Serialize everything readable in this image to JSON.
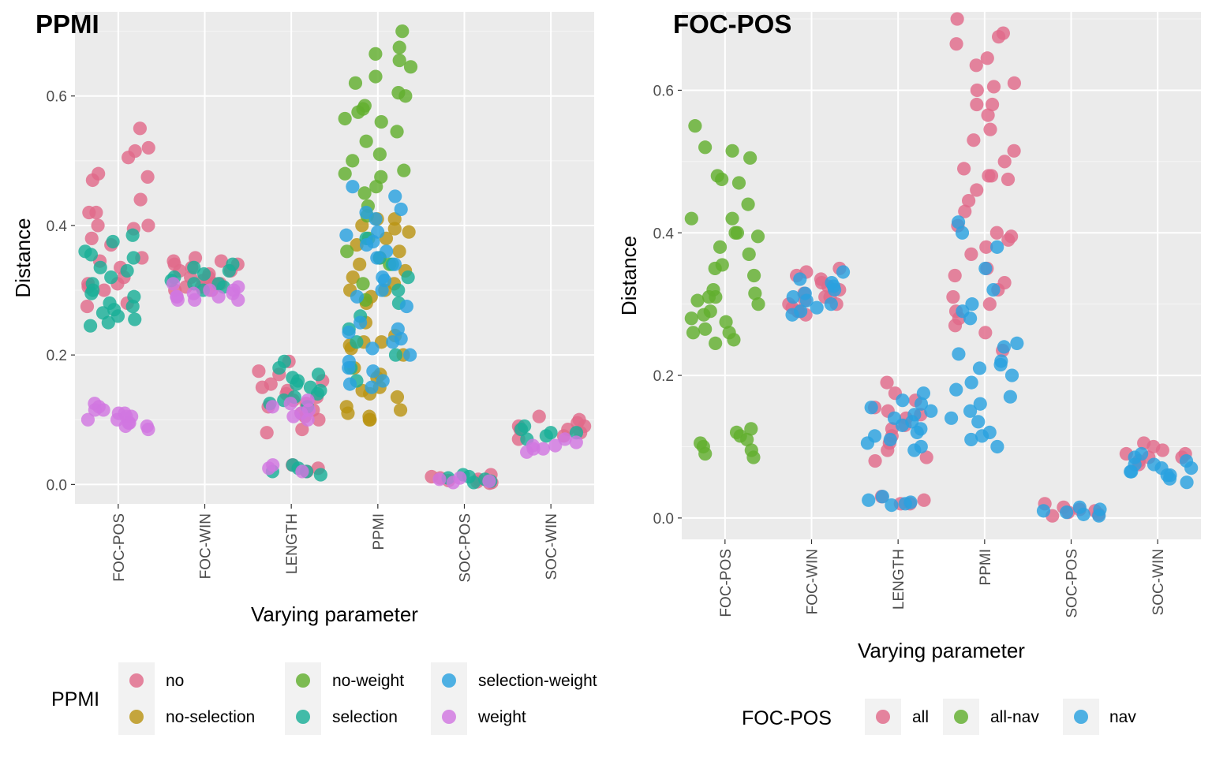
{
  "colors": {
    "no": "#E06A8A",
    "no-selection": "#BA9414",
    "no-weight": "#62AE2E",
    "selection": "#1AAE97",
    "selection-weight": "#29A1DF",
    "weight": "#D176E0",
    "all": "#E06A8A",
    "all-nav": "#62AE2E",
    "nav": "#29A1DF"
  },
  "chart_data": [
    {
      "type": "scatter",
      "title": "PPMI",
      "xlabel": "Varying parameter",
      "ylabel": "Distance",
      "categories": [
        "FOC-POS",
        "FOC-WIN",
        "LENGTH",
        "PPMI",
        "SOC-POS",
        "SOC-WIN"
      ],
      "ylim": [
        -0.03,
        0.73
      ],
      "yticks": [
        "0.0",
        "0.2",
        "0.4",
        "0.6"
      ],
      "grid": true,
      "legend": {
        "title": "PPMI",
        "position": "bottom",
        "entries": [
          "no",
          "no-selection",
          "no-weight",
          "selection",
          "selection-weight",
          "weight"
        ]
      },
      "series": [
        {
          "name": "no",
          "points": {
            "FOC-POS": [
              0.55,
              0.52,
              0.515,
              0.505,
              0.48,
              0.475,
              0.47,
              0.44,
              0.42,
              0.42,
              0.4,
              0.4,
              0.395,
              0.38,
              0.37,
              0.35,
              0.345,
              0.335,
              0.32,
              0.31,
              0.31,
              0.305,
              0.3,
              0.28,
              0.275
            ],
            "FOC-WIN": [
              0.35,
              0.345,
              0.345,
              0.34,
              0.34,
              0.335,
              0.33,
              0.33,
              0.325,
              0.32,
              0.32,
              0.315,
              0.31,
              0.31,
              0.305,
              0.305,
              0.3,
              0.3
            ],
            "LENGTH": [
              0.19,
              0.175,
              0.17,
              0.16,
              0.155,
              0.15,
              0.145,
              0.14,
              0.135,
              0.13,
              0.125,
              0.12,
              0.115,
              0.11,
              0.105,
              0.1,
              0.085,
              0.08,
              0.03,
              0.025,
              0.02
            ],
            "PPMI": [],
            "SOC-POS": [
              0.015,
              0.012,
              0.01,
              0.008,
              0.006,
              0.004,
              0.003,
              0.002
            ],
            "SOC-WIN": [
              0.105,
              0.1,
              0.095,
              0.09,
              0.09,
              0.085,
              0.085,
              0.08,
              0.075,
              0.07
            ]
          }
        },
        {
          "name": "no-selection",
          "points": {
            "FOC-POS": [],
            "FOC-WIN": [],
            "LENGTH": [],
            "PPMI": [
              0.41,
              0.41,
              0.4,
              0.395,
              0.39,
              0.38,
              0.37,
              0.36,
              0.35,
              0.34,
              0.33,
              0.32,
              0.31,
              0.3,
              0.3,
              0.29,
              0.28,
              0.25,
              0.23,
              0.22,
              0.22,
              0.215,
              0.21,
              0.2,
              0.18,
              0.17,
              0.165,
              0.15,
              0.145,
              0.14,
              0.135,
              0.12,
              0.115,
              0.11,
              0.105,
              0.1,
              0.1
            ],
            "SOC-POS": [],
            "SOC-WIN": []
          }
        },
        {
          "name": "no-weight",
          "points": {
            "FOC-POS": [],
            "FOC-WIN": [],
            "LENGTH": [],
            "PPMI": [
              0.7,
              0.675,
              0.665,
              0.655,
              0.645,
              0.63,
              0.62,
              0.605,
              0.6,
              0.585,
              0.58,
              0.575,
              0.565,
              0.56,
              0.545,
              0.53,
              0.51,
              0.5,
              0.485,
              0.48,
              0.475,
              0.46,
              0.45,
              0.43,
              0.415,
              0.38,
              0.36,
              0.34,
              0.31,
              0.285
            ],
            "SOC-POS": [],
            "SOC-WIN": []
          }
        },
        {
          "name": "selection",
          "points": {
            "FOC-POS": [
              0.385,
              0.375,
              0.36,
              0.355,
              0.35,
              0.335,
              0.33,
              0.32,
              0.31,
              0.3,
              0.295,
              0.29,
              0.28,
              0.275,
              0.27,
              0.265,
              0.26,
              0.255,
              0.25,
              0.245
            ],
            "FOC-WIN": [
              0.34,
              0.335,
              0.33,
              0.325,
              0.32,
              0.315,
              0.31,
              0.31,
              0.305,
              0.3
            ],
            "LENGTH": [
              0.19,
              0.18,
              0.17,
              0.165,
              0.16,
              0.155,
              0.15,
              0.145,
              0.14,
              0.135,
              0.13,
              0.125,
              0.12,
              0.03,
              0.025,
              0.02,
              0.02,
              0.015
            ],
            "PPMI": [
              0.38,
              0.35,
              0.34,
              0.32,
              0.3,
              0.28,
              0.26,
              0.24,
              0.22,
              0.2,
              0.18,
              0.16
            ],
            "SOC-POS": [
              0.015,
              0.012,
              0.01,
              0.008,
              0.005,
              0.003
            ],
            "SOC-WIN": [
              0.09,
              0.085,
              0.08,
              0.08,
              0.075,
              0.07
            ]
          }
        },
        {
          "name": "selection-weight",
          "points": {
            "FOC-POS": [],
            "FOC-WIN": [],
            "LENGTH": [],
            "PPMI": [
              0.46,
              0.445,
              0.425,
              0.42,
              0.41,
              0.39,
              0.385,
              0.375,
              0.37,
              0.36,
              0.35,
              0.34,
              0.32,
              0.315,
              0.3,
              0.29,
              0.275,
              0.25,
              0.24,
              0.235,
              0.225,
              0.22,
              0.21,
              0.2,
              0.19,
              0.18,
              0.175,
              0.16,
              0.155,
              0.15
            ],
            "SOC-POS": [],
            "SOC-WIN": []
          }
        },
        {
          "name": "weight",
          "points": {
            "FOC-POS": [
              0.125,
              0.12,
              0.115,
              0.115,
              0.11,
              0.11,
              0.105,
              0.105,
              0.1,
              0.1,
              0.095,
              0.095,
              0.09,
              0.09,
              0.085
            ],
            "FOC-WIN": [
              0.31,
              0.305,
              0.3,
              0.3,
              0.295,
              0.295,
              0.29,
              0.29,
              0.29,
              0.285,
              0.285,
              0.285
            ],
            "LENGTH": [
              0.13,
              0.125,
              0.12,
              0.115,
              0.11,
              0.105,
              0.1,
              0.03,
              0.025,
              0.02
            ],
            "PPMI": [],
            "SOC-POS": [
              0.01,
              0.008,
              0.005,
              0.003
            ],
            "SOC-WIN": [
              0.07,
              0.065,
              0.06,
              0.06,
              0.055,
              0.055,
              0.05
            ]
          }
        }
      ]
    },
    {
      "type": "scatter",
      "title": "FOC-POS",
      "xlabel": "Varying parameter",
      "ylabel": "Distance",
      "categories": [
        "FOC-POS",
        "FOC-WIN",
        "LENGTH",
        "PPMI",
        "SOC-POS",
        "SOC-WIN"
      ],
      "ylim": [
        -0.03,
        0.71
      ],
      "yticks": [
        "0.0",
        "0.2",
        "0.4",
        "0.6"
      ],
      "grid": true,
      "legend": {
        "title": "FOC-POS",
        "position": "bottom",
        "entries": [
          "all",
          "all-nav",
          "nav"
        ]
      },
      "series": [
        {
          "name": "all",
          "points": {
            "FOC-POS": [],
            "FOC-WIN": [
              0.35,
              0.345,
              0.34,
              0.335,
              0.33,
              0.325,
              0.32,
              0.315,
              0.31,
              0.31,
              0.305,
              0.3,
              0.3,
              0.295,
              0.29,
              0.29,
              0.285
            ],
            "LENGTH": [
              0.19,
              0.175,
              0.165,
              0.155,
              0.15,
              0.145,
              0.14,
              0.13,
              0.125,
              0.115,
              0.105,
              0.095,
              0.085,
              0.08,
              0.03,
              0.025,
              0.02,
              0.02
            ],
            "PPMI": [
              0.7,
              0.68,
              0.675,
              0.665,
              0.645,
              0.635,
              0.61,
              0.605,
              0.6,
              0.58,
              0.58,
              0.565,
              0.545,
              0.53,
              0.515,
              0.5,
              0.49,
              0.48,
              0.48,
              0.475,
              0.46,
              0.445,
              0.43,
              0.41,
              0.4,
              0.395,
              0.39,
              0.38,
              0.37,
              0.35,
              0.34,
              0.33,
              0.32,
              0.31,
              0.3,
              0.29,
              0.28,
              0.27,
              0.26,
              0.235
            ],
            "SOC-POS": [
              0.02,
              0.015,
              0.012,
              0.01,
              0.008,
              0.005,
              0.003
            ],
            "SOC-WIN": [
              0.105,
              0.1,
              0.095,
              0.09,
              0.09,
              0.085,
              0.085,
              0.08,
              0.075
            ]
          }
        },
        {
          "name": "all-nav",
          "points": {
            "FOC-POS": [
              0.55,
              0.52,
              0.515,
              0.505,
              0.48,
              0.475,
              0.47,
              0.44,
              0.42,
              0.42,
              0.4,
              0.4,
              0.395,
              0.38,
              0.37,
              0.355,
              0.35,
              0.34,
              0.32,
              0.315,
              0.31,
              0.31,
              0.305,
              0.3,
              0.29,
              0.285,
              0.28,
              0.275,
              0.265,
              0.26,
              0.26,
              0.25,
              0.245,
              0.125,
              0.12,
              0.115,
              0.11,
              0.105,
              0.1,
              0.095,
              0.09,
              0.085
            ],
            "FOC-WIN": [],
            "LENGTH": [],
            "PPMI": [],
            "SOC-POS": [],
            "SOC-WIN": []
          }
        },
        {
          "name": "nav",
          "points": {
            "FOC-POS": [],
            "FOC-WIN": [
              0.345,
              0.335,
              0.33,
              0.325,
              0.32,
              0.315,
              0.31,
              0.305,
              0.3,
              0.295,
              0.29,
              0.285
            ],
            "LENGTH": [
              0.175,
              0.165,
              0.16,
              0.155,
              0.15,
              0.145,
              0.14,
              0.135,
              0.13,
              0.125,
              0.12,
              0.115,
              0.11,
              0.105,
              0.1,
              0.095,
              0.03,
              0.025,
              0.022,
              0.02,
              0.018
            ],
            "PPMI": [
              0.415,
              0.4,
              0.38,
              0.35,
              0.32,
              0.3,
              0.29,
              0.28,
              0.245,
              0.24,
              0.23,
              0.22,
              0.215,
              0.21,
              0.2,
              0.19,
              0.18,
              0.17,
              0.16,
              0.15,
              0.14,
              0.135,
              0.12,
              0.115,
              0.11,
              0.1
            ],
            "SOC-POS": [
              0.015,
              0.012,
              0.01,
              0.008,
              0.005,
              0.003
            ],
            "SOC-WIN": [
              0.09,
              0.085,
              0.08,
              0.075,
              0.075,
              0.07,
              0.07,
              0.065,
              0.065,
              0.06,
              0.06,
              0.055,
              0.05
            ]
          }
        }
      ]
    }
  ]
}
